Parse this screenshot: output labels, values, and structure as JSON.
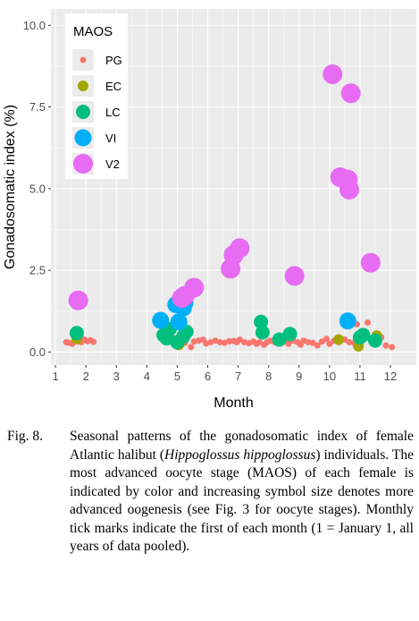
{
  "chart_data": {
    "type": "scatter",
    "xlabel": "Month",
    "ylabel": "Gonadosomatic index (%)",
    "xlim": [
      0.85,
      12.85
    ],
    "ylim": [
      -0.4,
      10.5
    ],
    "xticks": [
      1,
      2,
      3,
      4,
      5,
      6,
      7,
      8,
      9,
      10,
      11,
      12
    ],
    "yticks": [
      0,
      2.5,
      5,
      7.5,
      10
    ],
    "ytick_labels": [
      "0.0",
      "2.5",
      "5.0",
      "7.5",
      "10.0"
    ],
    "grid": true,
    "legend": {
      "title": "MAOS",
      "placement": "top-left",
      "entries": [
        {
          "label": "PG",
          "color": "#F8766D",
          "size": 1
        },
        {
          "label": "EC",
          "color": "#A3A500",
          "size": 2
        },
        {
          "label": "LC",
          "color": "#00BF7D",
          "size": 3
        },
        {
          "label": "VI",
          "color": "#00B0F6",
          "size": 4
        },
        {
          "label": "V2",
          "color": "#E76BF3",
          "size": 5
        }
      ]
    },
    "series": [
      {
        "name": "PG",
        "color": "#F8766D",
        "size": 1,
        "points": [
          [
            1.35,
            0.3
          ],
          [
            1.45,
            0.28
          ],
          [
            1.55,
            0.25
          ],
          [
            1.65,
            0.35
          ],
          [
            1.75,
            0.32
          ],
          [
            1.85,
            0.3
          ],
          [
            1.95,
            0.38
          ],
          [
            2.05,
            0.33
          ],
          [
            2.15,
            0.36
          ],
          [
            2.25,
            0.31
          ],
          [
            4.4,
            1.0
          ],
          [
            4.8,
            0.35
          ],
          [
            4.9,
            0.42
          ],
          [
            5.25,
            0.28
          ],
          [
            5.45,
            0.15
          ],
          [
            5.55,
            0.32
          ],
          [
            5.7,
            0.35
          ],
          [
            5.85,
            0.38
          ],
          [
            5.95,
            0.26
          ],
          [
            6.1,
            0.3
          ],
          [
            6.25,
            0.35
          ],
          [
            6.4,
            0.3
          ],
          [
            6.55,
            0.28
          ],
          [
            6.7,
            0.33
          ],
          [
            6.85,
            0.34
          ],
          [
            6.95,
            0.3
          ],
          [
            7.05,
            0.38
          ],
          [
            7.2,
            0.3
          ],
          [
            7.35,
            0.27
          ],
          [
            7.5,
            0.32
          ],
          [
            7.6,
            0.25
          ],
          [
            7.7,
            0.3
          ],
          [
            7.85,
            0.22
          ],
          [
            7.95,
            0.3
          ],
          [
            8.05,
            0.35
          ],
          [
            8.2,
            0.3
          ],
          [
            8.35,
            0.28
          ],
          [
            8.5,
            0.32
          ],
          [
            8.65,
            0.25
          ],
          [
            8.8,
            0.35
          ],
          [
            8.95,
            0.3
          ],
          [
            9.05,
            0.22
          ],
          [
            9.15,
            0.35
          ],
          [
            9.3,
            0.3
          ],
          [
            9.45,
            0.28
          ],
          [
            9.6,
            0.2
          ],
          [
            9.75,
            0.32
          ],
          [
            9.9,
            0.4
          ],
          [
            10.0,
            0.25
          ],
          [
            10.15,
            0.35
          ],
          [
            10.3,
            0.3
          ],
          [
            10.5,
            0.38
          ],
          [
            10.65,
            0.3
          ],
          [
            10.8,
            0.28
          ],
          [
            10.9,
            0.85
          ],
          [
            11.05,
            0.5
          ],
          [
            11.25,
            0.9
          ],
          [
            11.4,
            0.3
          ],
          [
            11.55,
            0.35
          ],
          [
            11.7,
            0.45
          ],
          [
            11.85,
            0.2
          ],
          [
            12.05,
            0.15
          ]
        ]
      },
      {
        "name": "EC",
        "color": "#A3A500",
        "size": 2,
        "points": [
          [
            1.7,
            0.4
          ],
          [
            5.05,
            0.22
          ],
          [
            5.1,
            0.3
          ],
          [
            10.3,
            0.38
          ],
          [
            10.95,
            0.18
          ],
          [
            11.55,
            0.5
          ]
        ]
      },
      {
        "name": "LC",
        "color": "#00BF7D",
        "size": 3,
        "points": [
          [
            1.7,
            0.58
          ],
          [
            4.55,
            0.52
          ],
          [
            4.65,
            0.42
          ],
          [
            4.75,
            0.7
          ],
          [
            5.0,
            0.3
          ],
          [
            5.2,
            0.48
          ],
          [
            5.3,
            0.62
          ],
          [
            7.75,
            0.92
          ],
          [
            7.8,
            0.6
          ],
          [
            8.35,
            0.38
          ],
          [
            8.7,
            0.55
          ],
          [
            11.0,
            0.45
          ],
          [
            11.1,
            0.52
          ],
          [
            11.5,
            0.35
          ]
        ]
      },
      {
        "name": "VI",
        "color": "#00B0F6",
        "size": 4,
        "points": [
          [
            4.45,
            0.97
          ],
          [
            4.95,
            1.45
          ],
          [
            5.05,
            0.92
          ],
          [
            5.2,
            1.35
          ],
          [
            5.25,
            1.5
          ],
          [
            10.6,
            0.95
          ]
        ]
      },
      {
        "name": "V2",
        "color": "#E76BF3",
        "size": 5,
        "points": [
          [
            1.75,
            1.58
          ],
          [
            5.15,
            1.65
          ],
          [
            5.25,
            1.72
          ],
          [
            5.55,
            1.97
          ],
          [
            6.75,
            2.55
          ],
          [
            6.85,
            2.97
          ],
          [
            7.05,
            3.18
          ],
          [
            8.85,
            2.33
          ],
          [
            10.1,
            8.5
          ],
          [
            10.35,
            5.35
          ],
          [
            10.6,
            5.28
          ],
          [
            10.65,
            4.97
          ],
          [
            10.7,
            7.92
          ],
          [
            11.35,
            2.73
          ]
        ]
      }
    ]
  },
  "caption": {
    "label": "Fig. 8.",
    "text_before_italic": "Seasonal patterns of the gonadosomatic index of female Atlantic halibut (",
    "italic": "Hippoglossus hippoglossus",
    "text_after_italic": ") individuals. The most advanced oocyte stage (MAOS) of each female is indicated by color and increasing symbol size denotes more advanced oogenesis (see Fig. 3 for oocyte stages). Monthly tick marks indicate the first of each month (1 = January 1, all years of data pooled)."
  }
}
